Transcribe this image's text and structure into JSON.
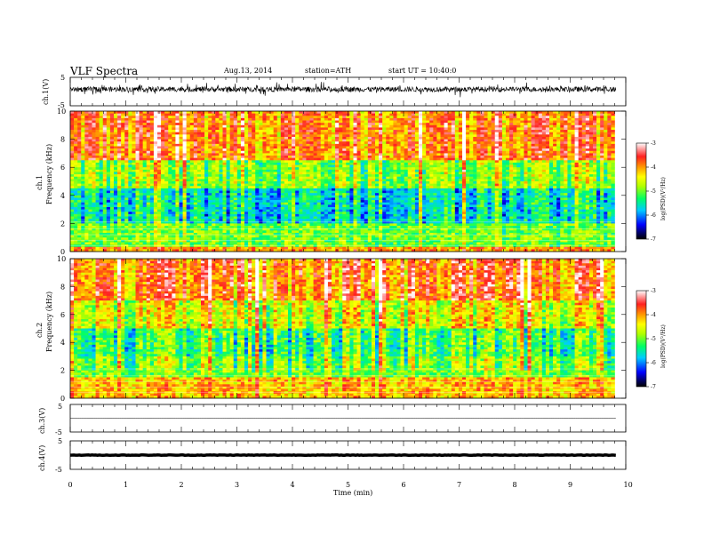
{
  "header": {
    "title": "VLF  Spectra",
    "date": "Aug.13, 2014",
    "station": "station=ATH",
    "start": "start  UT =   10:40:0"
  },
  "chart_data": [
    {
      "id": "ch1_waveform",
      "type": "line",
      "ylabel": "ch.1(V)",
      "ylim": [
        -5,
        5
      ],
      "yticks": [
        "5",
        "-5"
      ],
      "xlim": [
        0,
        10
      ],
      "description_values": {
        "mean": 0.8,
        "amplitude": 1.8
      },
      "color": "#000000"
    },
    {
      "id": "ch1_spectrogram",
      "type": "heatmap",
      "ylabel": "Frequency (kHz)",
      "panel_label": "ch.1",
      "ylim": [
        0,
        10
      ],
      "yticks": [
        "0",
        "2",
        "4",
        "6",
        "8",
        "10"
      ],
      "xlim": [
        0,
        9.8
      ],
      "colorbar": {
        "label": "log(PSD)(V²/Hz)",
        "range": [
          -7,
          -3
        ],
        "ticks": [
          "-3",
          "-4",
          "-5",
          "-6",
          "-7"
        ]
      },
      "bands": [
        {
          "f": [
            0,
            0.3
          ],
          "level": -4.0
        },
        {
          "f": [
            0.3,
            2.0
          ],
          "level": -5.0
        },
        {
          "f": [
            2.0,
            4.5
          ],
          "level": -5.6
        },
        {
          "f": [
            4.5,
            6.5
          ],
          "level": -4.9
        },
        {
          "f": [
            6.5,
            10
          ],
          "level": -3.9
        }
      ]
    },
    {
      "id": "ch2_spectrogram",
      "type": "heatmap",
      "ylabel": "Frequency (kHz)",
      "panel_label": "ch.2",
      "ylim": [
        0,
        10
      ],
      "yticks": [
        "0",
        "2",
        "4",
        "6",
        "8",
        "10"
      ],
      "xlim": [
        0,
        9.8
      ],
      "colorbar": {
        "label": "log(PSD)(V²/Hz)",
        "range": [
          -7,
          -3
        ],
        "ticks": [
          "-3",
          "-4",
          "-5",
          "-6",
          "-7"
        ]
      },
      "bands": [
        {
          "f": [
            0,
            1.5
          ],
          "level": -4.2
        },
        {
          "f": [
            1.5,
            3.0
          ],
          "level": -5.0
        },
        {
          "f": [
            3.0,
            5.0
          ],
          "level": -5.3
        },
        {
          "f": [
            5.0,
            7.0
          ],
          "level": -4.6
        },
        {
          "f": [
            7.0,
            10
          ],
          "level": -3.9
        }
      ]
    },
    {
      "id": "ch3_waveform",
      "type": "line",
      "ylabel": "ch.3(V)",
      "ylim": [
        -5,
        5
      ],
      "yticks": [
        "5",
        "-5"
      ],
      "xlim": [
        0,
        10
      ],
      "description_values": {
        "mean": 0.0,
        "amplitude": 0.1
      },
      "color": "#000000"
    },
    {
      "id": "ch4_waveform",
      "type": "line",
      "ylabel": "ch.4(V)",
      "ylim": [
        -5,
        5
      ],
      "yticks": [
        "5",
        "-5"
      ],
      "xlim": [
        0,
        10
      ],
      "description_values": {
        "mean": 0.0,
        "amplitude": 0.15
      },
      "color": "#000000"
    }
  ],
  "xaxis": {
    "label": "Time  (min)",
    "ticks": [
      "0",
      "1",
      "2",
      "3",
      "4",
      "5",
      "6",
      "7",
      "8",
      "9",
      "10"
    ]
  }
}
